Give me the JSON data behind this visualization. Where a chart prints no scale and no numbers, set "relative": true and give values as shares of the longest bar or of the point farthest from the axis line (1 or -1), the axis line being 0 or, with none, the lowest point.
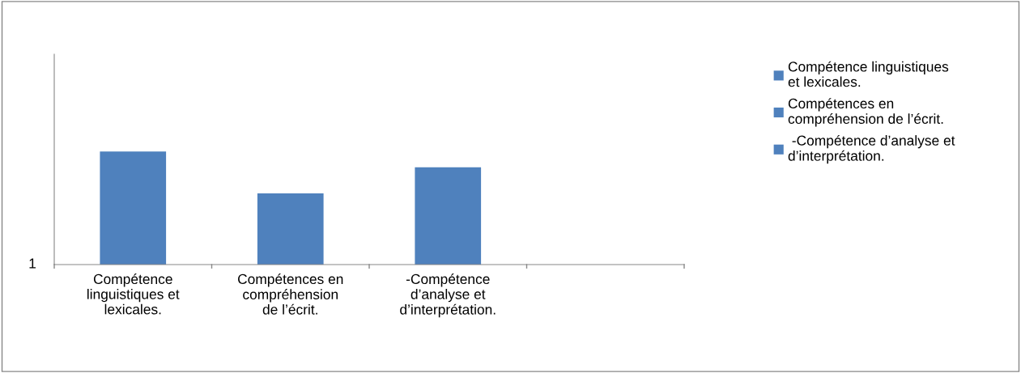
{
  "chart_data": {
    "type": "bar",
    "relative": true,
    "categories": [
      "Compétence\nlinguistiques et\nlexicales.",
      "Compétences en\ncompréhension\nde l’écrit.",
      "-Compétence\nd’analyse et\nd’interprétation.",
      null
    ],
    "series": [
      {
        "name": "Compétence linguistiques\net lexicales.",
        "color": "#4f81bd",
        "values": [
          1,
          null,
          null,
          null
        ]
      },
      {
        "name": "Compétences en\ncompréhension de l’écrit.",
        "color": "#4f81bd",
        "values": [
          null,
          0.63,
          null,
          null
        ]
      },
      {
        "name": " -Compétence d’analyse et\nd’interprétation.",
        "color": "#4f81bd",
        "values": [
          null,
          null,
          0.86,
          null
        ]
      }
    ],
    "annotations": [
      "1"
    ],
    "legend": "right"
  }
}
